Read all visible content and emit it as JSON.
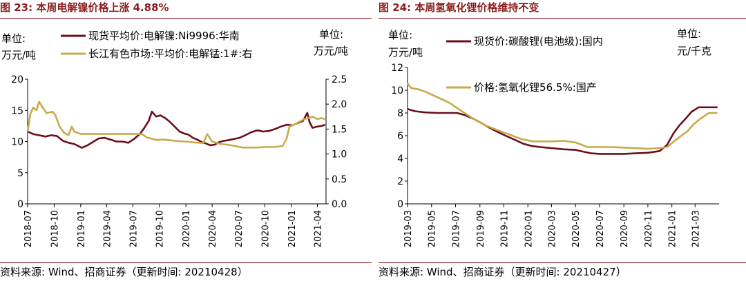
{
  "left": {
    "title": "图 23:  本周电解镍价格上涨 4.88%",
    "source": "资料来源:  Wind、招商证券（更新时间:  20210428）",
    "chart_data": {
      "type": "line",
      "y_left_unit": [
        "单位:",
        "万元/吨"
      ],
      "y_right_unit": [
        "单位:",
        "万元/吨"
      ],
      "ylim_left": [
        0,
        20
      ],
      "yticks_left": [
        0,
        5,
        10,
        15,
        20
      ],
      "ylim_right": [
        0,
        2.5
      ],
      "yticks_right": [
        "0.0",
        "0.5",
        "1.0",
        "1.5",
        "2.0",
        "2.5"
      ],
      "xlim": [
        "2018-07",
        "2021-05"
      ],
      "x_ticks": [
        "2018-07",
        "2018-10",
        "2019-01",
        "2019-04",
        "2019-07",
        "2019-10",
        "2020-01",
        "2020-04",
        "2020-07",
        "2020-10",
        "2021-01",
        "2021-04"
      ],
      "series": [
        {
          "name": "现货平均价:电解镍:Ni9996:华南",
          "axis": "left",
          "color": "#6b0d1a",
          "points": [
            [
              "2018-07-01",
              11.6
            ],
            [
              "2018-07-20",
              11.2
            ],
            [
              "2018-08-10",
              11.0
            ],
            [
              "2018-09-01",
              10.8
            ],
            [
              "2018-09-20",
              11.0
            ],
            [
              "2018-10-10",
              10.9
            ],
            [
              "2018-11-01",
              10.1
            ],
            [
              "2018-11-20",
              9.8
            ],
            [
              "2018-12-10",
              9.6
            ],
            [
              "2019-01-05",
              9.0
            ],
            [
              "2019-01-25",
              9.4
            ],
            [
              "2019-02-15",
              10.0
            ],
            [
              "2019-03-05",
              10.5
            ],
            [
              "2019-03-25",
              10.6
            ],
            [
              "2019-04-15",
              10.3
            ],
            [
              "2019-05-05",
              10.0
            ],
            [
              "2019-05-25",
              10.0
            ],
            [
              "2019-06-15",
              9.8
            ],
            [
              "2019-07-05",
              10.4
            ],
            [
              "2019-07-25",
              11.2
            ],
            [
              "2019-08-10",
              12.2
            ],
            [
              "2019-08-25",
              13.3
            ],
            [
              "2019-09-05",
              14.8
            ],
            [
              "2019-09-20",
              14.0
            ],
            [
              "2019-10-05",
              14.2
            ],
            [
              "2019-10-20",
              13.8
            ],
            [
              "2019-11-05",
              13.2
            ],
            [
              "2019-11-25",
              12.3
            ],
            [
              "2019-12-10",
              11.6
            ],
            [
              "2019-12-25",
              11.3
            ],
            [
              "2020-01-10",
              11.1
            ],
            [
              "2020-01-25",
              10.6
            ],
            [
              "2020-02-10",
              10.3
            ],
            [
              "2020-02-25",
              9.9
            ],
            [
              "2020-03-10",
              9.7
            ],
            [
              "2020-03-25",
              9.4
            ],
            [
              "2020-04-10",
              9.5
            ],
            [
              "2020-04-25",
              9.9
            ],
            [
              "2020-05-10",
              10.1
            ],
            [
              "2020-05-25",
              10.2
            ],
            [
              "2020-06-15",
              10.4
            ],
            [
              "2020-07-05",
              10.6
            ],
            [
              "2020-07-25",
              11.0
            ],
            [
              "2020-08-15",
              11.5
            ],
            [
              "2020-09-05",
              11.8
            ],
            [
              "2020-09-25",
              11.6
            ],
            [
              "2020-10-15",
              11.7
            ],
            [
              "2020-11-05",
              12.0
            ],
            [
              "2020-11-25",
              12.4
            ],
            [
              "2020-12-15",
              12.7
            ],
            [
              "2021-01-05",
              12.6
            ],
            [
              "2021-01-25",
              13.0
            ],
            [
              "2021-02-10",
              13.3
            ],
            [
              "2021-02-25",
              14.6
            ],
            [
              "2021-03-05",
              13.1
            ],
            [
              "2021-03-15",
              12.2
            ],
            [
              "2021-04-01",
              12.4
            ],
            [
              "2021-04-15",
              12.5
            ],
            [
              "2021-04-28",
              12.7
            ]
          ]
        },
        {
          "name": "长江有色市场:平均价:电解锰:1#:右",
          "axis": "right",
          "color": "#c9a94a",
          "points": [
            [
              "2018-07-01",
              1.45
            ],
            [
              "2018-07-10",
              1.8
            ],
            [
              "2018-07-20",
              1.93
            ],
            [
              "2018-08-01",
              1.88
            ],
            [
              "2018-08-10",
              2.05
            ],
            [
              "2018-08-20",
              1.95
            ],
            [
              "2018-09-05",
              1.82
            ],
            [
              "2018-09-25",
              1.85
            ],
            [
              "2018-10-05",
              1.78
            ],
            [
              "2018-10-20",
              1.55
            ],
            [
              "2018-11-05",
              1.42
            ],
            [
              "2018-11-20",
              1.38
            ],
            [
              "2018-12-01",
              1.55
            ],
            [
              "2018-12-10",
              1.45
            ],
            [
              "2019-01-01",
              1.4
            ],
            [
              "2019-02-01",
              1.4
            ],
            [
              "2019-03-01",
              1.4
            ],
            [
              "2019-05-01",
              1.4
            ],
            [
              "2019-07-01",
              1.4
            ],
            [
              "2019-08-01",
              1.4
            ],
            [
              "2019-08-20",
              1.33
            ],
            [
              "2019-09-10",
              1.3
            ],
            [
              "2019-09-20",
              1.28
            ],
            [
              "2019-10-10",
              1.29
            ],
            [
              "2019-11-01",
              1.28
            ],
            [
              "2019-12-01",
              1.26
            ],
            [
              "2020-01-01",
              1.25
            ],
            [
              "2020-02-01",
              1.23
            ],
            [
              "2020-03-01",
              1.22
            ],
            [
              "2020-03-15",
              1.4
            ],
            [
              "2020-04-01",
              1.25
            ],
            [
              "2020-05-01",
              1.2
            ],
            [
              "2020-06-01",
              1.18
            ],
            [
              "2020-06-20",
              1.16
            ],
            [
              "2020-07-15",
              1.13
            ],
            [
              "2020-09-01",
              1.13
            ],
            [
              "2020-10-01",
              1.14
            ],
            [
              "2020-11-01",
              1.14
            ],
            [
              "2020-12-01",
              1.16
            ],
            [
              "2020-12-15",
              1.3
            ],
            [
              "2020-12-25",
              1.55
            ],
            [
              "2021-01-15",
              1.6
            ],
            [
              "2021-02-01",
              1.66
            ],
            [
              "2021-02-15",
              1.7
            ],
            [
              "2021-03-01",
              1.72
            ],
            [
              "2021-03-15",
              1.75
            ],
            [
              "2021-04-01",
              1.7
            ],
            [
              "2021-04-15",
              1.72
            ],
            [
              "2021-04-28",
              1.7
            ]
          ]
        }
      ]
    }
  },
  "right": {
    "title": "图 24:  本周氢氧化锂价格维持不变",
    "source": "资料来源:  Wind、招商证券（更新时间:  20210427）",
    "chart_data": {
      "type": "line",
      "y_left_unit": [
        "单位:",
        "万元/吨"
      ],
      "y_right_unit": [
        "单位:",
        "元/千克"
      ],
      "ylim": [
        0,
        12
      ],
      "yticks": [
        0,
        2,
        4,
        6,
        8,
        10,
        12
      ],
      "xlim": [
        "2019-03",
        "2021-05"
      ],
      "x_ticks": [
        "2019-03",
        "2019-05",
        "2019-07",
        "2019-09",
        "2019-11",
        "2020-01",
        "2020-03",
        "2020-05",
        "2020-07",
        "2020-09",
        "2020-11",
        "2021-01",
        "2021-03"
      ],
      "series": [
        {
          "name": "现货价:碳酸锂(电池级):国内",
          "color": "#6b0d1a",
          "points": [
            [
              "2019-03-01",
              8.35
            ],
            [
              "2019-03-20",
              8.15
            ],
            [
              "2019-04-15",
              8.05
            ],
            [
              "2019-05-15",
              8.0
            ],
            [
              "2019-06-15",
              8.0
            ],
            [
              "2019-07-05",
              8.0
            ],
            [
              "2019-07-25",
              7.8
            ],
            [
              "2019-08-15",
              7.5
            ],
            [
              "2019-09-05",
              7.1
            ],
            [
              "2019-09-25",
              6.7
            ],
            [
              "2019-10-15",
              6.35
            ],
            [
              "2019-11-05",
              6.0
            ],
            [
              "2019-12-01",
              5.6
            ],
            [
              "2019-12-20",
              5.3
            ],
            [
              "2020-01-10",
              5.1
            ],
            [
              "2020-02-01",
              5.0
            ],
            [
              "2020-03-01",
              4.9
            ],
            [
              "2020-04-01",
              4.8
            ],
            [
              "2020-05-01",
              4.75
            ],
            [
              "2020-05-20",
              4.6
            ],
            [
              "2020-06-10",
              4.45
            ],
            [
              "2020-07-01",
              4.4
            ],
            [
              "2020-08-01",
              4.4
            ],
            [
              "2020-09-01",
              4.4
            ],
            [
              "2020-10-01",
              4.45
            ],
            [
              "2020-11-01",
              4.5
            ],
            [
              "2020-12-01",
              4.65
            ],
            [
              "2020-12-20",
              5.2
            ],
            [
              "2021-01-05",
              6.2
            ],
            [
              "2021-01-20",
              6.9
            ],
            [
              "2021-02-05",
              7.5
            ],
            [
              "2021-02-20",
              8.1
            ],
            [
              "2021-03-10",
              8.5
            ],
            [
              "2021-04-01",
              8.5
            ],
            [
              "2021-04-27",
              8.5
            ]
          ]
        },
        {
          "name": "价格:氢氧化锂56.5%:国产",
          "color": "#c9a94a",
          "points": [
            [
              "2019-03-01",
              10.6
            ],
            [
              "2019-03-10",
              10.2
            ],
            [
              "2019-04-01",
              10.05
            ],
            [
              "2019-04-20",
              9.8
            ],
            [
              "2019-05-15",
              9.4
            ],
            [
              "2019-06-15",
              8.9
            ],
            [
              "2019-07-15",
              8.2
            ],
            [
              "2019-08-15",
              7.5
            ],
            [
              "2019-09-15",
              6.9
            ],
            [
              "2019-10-15",
              6.5
            ],
            [
              "2019-11-15",
              6.1
            ],
            [
              "2019-12-15",
              5.7
            ],
            [
              "2020-01-15",
              5.5
            ],
            [
              "2020-03-01",
              5.5
            ],
            [
              "2020-04-01",
              5.55
            ],
            [
              "2020-05-01",
              5.4
            ],
            [
              "2020-06-01",
              5.0
            ],
            [
              "2020-07-01",
              5.0
            ],
            [
              "2020-08-01",
              5.0
            ],
            [
              "2020-09-01",
              4.95
            ],
            [
              "2020-10-01",
              4.9
            ],
            [
              "2020-11-01",
              4.85
            ],
            [
              "2020-12-01",
              4.9
            ],
            [
              "2020-12-20",
              5.0
            ],
            [
              "2021-01-10",
              5.6
            ],
            [
              "2021-01-25",
              6.0
            ],
            [
              "2021-02-10",
              6.4
            ],
            [
              "2021-02-25",
              7.0
            ],
            [
              "2021-03-15",
              7.5
            ],
            [
              "2021-04-05",
              8.0
            ],
            [
              "2021-04-27",
              8.0
            ]
          ]
        }
      ]
    }
  }
}
